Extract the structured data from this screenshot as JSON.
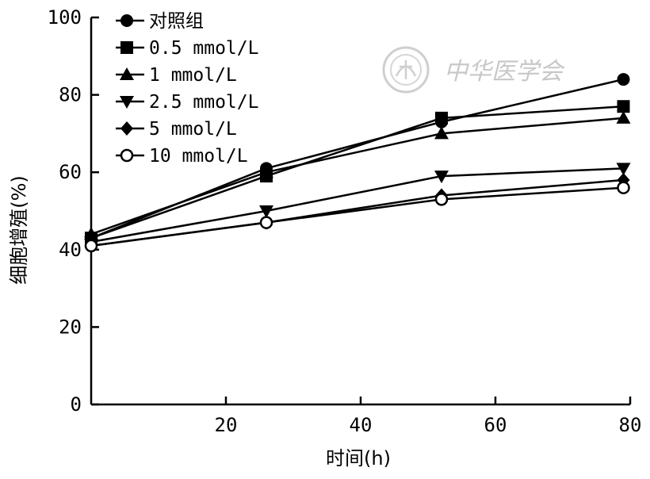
{
  "chart_data": {
    "type": "line",
    "title": "",
    "xlabel": "时间(h)",
    "ylabel": "细胞增殖(%)",
    "xlim": [
      0,
      80
    ],
    "ylim": [
      0,
      100
    ],
    "x_ticks": [
      20,
      40,
      60,
      80
    ],
    "y_ticks": [
      0,
      20,
      40,
      60,
      80,
      100
    ],
    "grid": false,
    "legend_position": "top-left",
    "x": [
      0,
      26,
      52,
      79
    ],
    "series": [
      {
        "name": "对照组",
        "marker": "circle-filled",
        "values": [
          43,
          61,
          73,
          84
        ]
      },
      {
        "name": "0.5 mmol/L",
        "marker": "square-filled",
        "values": [
          43,
          59,
          74,
          77
        ]
      },
      {
        "name": "1 mmol/L",
        "marker": "triangle-up-filled",
        "values": [
          44,
          60,
          70,
          74
        ]
      },
      {
        "name": "2.5 mmol/L",
        "marker": "triangle-down-filled",
        "values": [
          42,
          50,
          59,
          61
        ]
      },
      {
        "name": "5 mmol/L",
        "marker": "diamond-filled",
        "values": [
          41,
          47,
          54,
          58
        ]
      },
      {
        "name": "10 mmol/L",
        "marker": "circle-open",
        "values": [
          41,
          47,
          53,
          56
        ]
      }
    ]
  },
  "watermark": {
    "text": "中华医学会"
  }
}
